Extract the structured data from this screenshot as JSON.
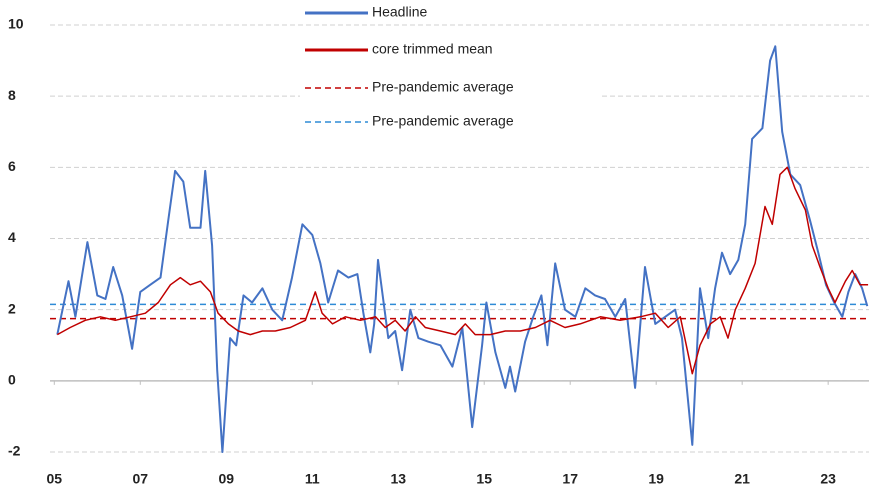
{
  "chart_data": {
    "type": "line",
    "xlim": [
      2004.9,
      2023.95
    ],
    "xticks": [
      {
        "value": 2005,
        "label": "05"
      },
      {
        "value": 2007,
        "label": "07"
      },
      {
        "value": 2009,
        "label": "09"
      },
      {
        "value": 2011,
        "label": "11"
      },
      {
        "value": 2013,
        "label": "13"
      },
      {
        "value": 2015,
        "label": "15"
      },
      {
        "value": 2017,
        "label": "17"
      },
      {
        "value": 2019,
        "label": "19"
      },
      {
        "value": 2021,
        "label": "21"
      },
      {
        "value": 2023,
        "label": "23"
      }
    ],
    "ylim": [
      -2,
      10
    ],
    "yticks": [
      -2,
      0,
      2,
      4,
      6,
      8,
      10
    ],
    "grid": true,
    "series": [
      {
        "name": "Headline",
        "color": "#4472c4",
        "width": 2,
        "x": [
          2005.07,
          2005.33,
          2005.49,
          2005.77,
          2006.0,
          2006.19,
          2006.37,
          2006.58,
          2006.81,
          2007.0,
          2007.23,
          2007.47,
          2007.65,
          2007.81,
          2008.0,
          2008.16,
          2008.4,
          2008.51,
          2008.67,
          2008.79,
          2008.91,
          2009.09,
          2009.23,
          2009.4,
          2009.6,
          2009.84,
          2010.07,
          2010.3,
          2010.53,
          2010.77,
          2011.0,
          2011.19,
          2011.37,
          2011.6,
          2011.84,
          2012.05,
          2012.19,
          2012.35,
          2012.44,
          2012.53,
          2012.77,
          2012.93,
          2013.09,
          2013.28,
          2013.47,
          2013.7,
          2013.98,
          2014.26,
          2014.49,
          2014.72,
          2014.95,
          2015.05,
          2015.26,
          2015.49,
          2015.6,
          2015.72,
          2015.95,
          2016.14,
          2016.33,
          2016.47,
          2016.65,
          2016.88,
          2017.12,
          2017.35,
          2017.58,
          2017.81,
          2018.05,
          2018.28,
          2018.51,
          2018.74,
          2018.98,
          2019.21,
          2019.44,
          2019.6,
          2019.84,
          2020.02,
          2020.21,
          2020.37,
          2020.53,
          2020.72,
          2020.91,
          2021.07,
          2021.23,
          2021.47,
          2021.65,
          2021.77,
          2021.93,
          2022.12,
          2022.35,
          2022.58,
          2022.77,
          2022.95,
          2023.14,
          2023.33,
          2023.47,
          2023.63,
          2023.79,
          2023.91
        ],
        "values": [
          1.3,
          2.8,
          1.8,
          3.9,
          2.4,
          2.3,
          3.2,
          2.4,
          0.9,
          2.5,
          2.7,
          2.9,
          4.5,
          5.9,
          5.6,
          4.3,
          4.3,
          5.9,
          3.8,
          0.3,
          -2.0,
          1.2,
          1.0,
          2.4,
          2.2,
          2.6,
          2.0,
          1.7,
          2.9,
          4.4,
          4.1,
          3.3,
          2.2,
          3.1,
          2.9,
          3.0,
          1.9,
          0.8,
          1.6,
          3.4,
          1.2,
          1.4,
          0.3,
          2.0,
          1.2,
          1.1,
          1.0,
          0.4,
          1.5,
          -1.3,
          1.0,
          2.2,
          0.8,
          -0.2,
          0.4,
          -0.3,
          1.1,
          1.8,
          2.4,
          1.0,
          3.3,
          2.0,
          1.8,
          2.6,
          2.4,
          2.3,
          1.8,
          2.3,
          -0.2,
          3.2,
          1.6,
          1.8,
          2.0,
          1.2,
          -1.8,
          2.6,
          1.2,
          2.6,
          3.6,
          3.0,
          3.4,
          4.4,
          6.8,
          7.1,
          9.0,
          9.4,
          7.0,
          5.8,
          5.5,
          4.5,
          3.6,
          2.7,
          2.2,
          1.8,
          2.5,
          3.0,
          2.6,
          2.1
        ]
      },
      {
        "name": "core trimmed mean",
        "color": "#c00000",
        "width": 1.5,
        "x": [
          2005.07,
          2005.37,
          2005.72,
          2006.07,
          2006.42,
          2006.77,
          2007.12,
          2007.42,
          2007.7,
          2007.93,
          2008.16,
          2008.4,
          2008.63,
          2008.81,
          2009.05,
          2009.28,
          2009.56,
          2009.84,
          2010.14,
          2010.49,
          2010.84,
          2011.07,
          2011.23,
          2011.47,
          2011.77,
          2012.12,
          2012.47,
          2012.7,
          2012.93,
          2013.16,
          2013.4,
          2013.63,
          2013.98,
          2014.33,
          2014.56,
          2014.79,
          2015.14,
          2015.49,
          2015.84,
          2016.19,
          2016.53,
          2016.88,
          2017.23,
          2017.7,
          2018.16,
          2018.63,
          2018.98,
          2019.28,
          2019.56,
          2019.84,
          2020.02,
          2020.26,
          2020.49,
          2020.67,
          2020.84,
          2021.07,
          2021.3,
          2021.53,
          2021.7,
          2021.88,
          2022.05,
          2022.23,
          2022.47,
          2022.63,
          2022.81,
          2023.0,
          2023.16,
          2023.4,
          2023.56,
          2023.74,
          2023.93
        ],
        "values": [
          1.3,
          1.5,
          1.7,
          1.8,
          1.7,
          1.8,
          1.9,
          2.2,
          2.7,
          2.9,
          2.7,
          2.8,
          2.5,
          1.9,
          1.6,
          1.4,
          1.3,
          1.4,
          1.4,
          1.5,
          1.7,
          2.5,
          1.9,
          1.6,
          1.8,
          1.7,
          1.8,
          1.5,
          1.7,
          1.4,
          1.8,
          1.5,
          1.4,
          1.3,
          1.6,
          1.3,
          1.3,
          1.4,
          1.4,
          1.5,
          1.7,
          1.5,
          1.6,
          1.8,
          1.7,
          1.8,
          1.9,
          1.5,
          1.8,
          0.2,
          1.0,
          1.6,
          1.8,
          1.2,
          2.0,
          2.6,
          3.3,
          4.9,
          4.4,
          5.8,
          6.0,
          5.4,
          4.8,
          3.8,
          3.2,
          2.6,
          2.2,
          2.8,
          3.1,
          2.7,
          2.7
        ]
      }
    ],
    "hlines": [
      {
        "name": "Pre-pandemic average",
        "color": "#c00000",
        "value": 1.75
      },
      {
        "name": "Pre-pandemic average",
        "color": "#2e8bd6",
        "value": 2.15
      }
    ]
  }
}
